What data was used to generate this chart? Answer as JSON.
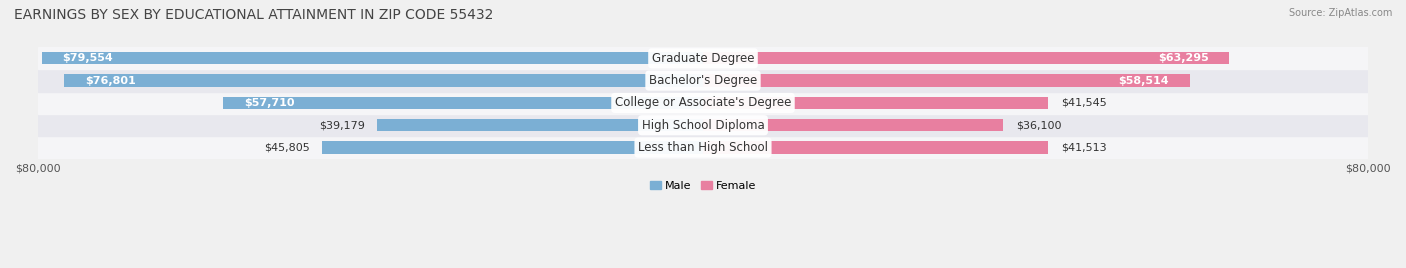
{
  "title": "EARNINGS BY SEX BY EDUCATIONAL ATTAINMENT IN ZIP CODE 55432",
  "source": "Source: ZipAtlas.com",
  "categories": [
    "Less than High School",
    "High School Diploma",
    "College or Associate's Degree",
    "Bachelor's Degree",
    "Graduate Degree"
  ],
  "male_values": [
    45805,
    39179,
    57710,
    76801,
    79554
  ],
  "female_values": [
    41513,
    36100,
    41545,
    58514,
    63295
  ],
  "male_color": "#7bafd4",
  "female_color": "#e87fa0",
  "max_value": 80000,
  "background_color": "#f0f0f0",
  "bar_bg_color": "#e0e0e8",
  "row_bg_colors": [
    "#f5f5f7",
    "#e8e8ee"
  ],
  "title_fontsize": 10,
  "label_fontsize": 8.5,
  "value_fontsize": 8,
  "bar_height": 0.55
}
